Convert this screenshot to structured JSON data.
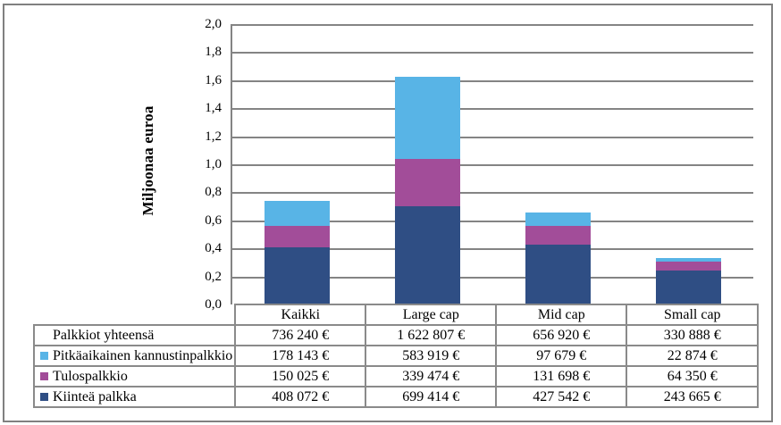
{
  "figure": {
    "background": "#ffffff",
    "outer_border_color": "#808080",
    "grid_color": "#848484",
    "table_border_color": "#8a8a8a"
  },
  "chart_data": {
    "type": "bar",
    "stacked": true,
    "title": "",
    "ylabel": "Miljoonaa euroa",
    "xlabel": "",
    "categories": [
      "Kaikki",
      "Large cap",
      "Mid cap",
      "Small cap"
    ],
    "series": [
      {
        "name": "Kiinteä palkka",
        "color": "#2F4E84",
        "values_millions": [
          0.408072,
          0.699414,
          0.427542,
          0.243665
        ]
      },
      {
        "name": "Tulospalkkio",
        "color": "#A24D99",
        "values_millions": [
          0.150025,
          0.339474,
          0.131698,
          0.06435
        ]
      },
      {
        "name": "Pitkäaikainen kannustinpalkkio",
        "color": "#58B4E6",
        "values_millions": [
          0.178143,
          0.583919,
          0.097679,
          0.022874
        ]
      }
    ],
    "totals_millions": [
      0.73624,
      1.622807,
      0.65692,
      0.330888
    ],
    "ylim": [
      0,
      2.0
    ],
    "ytick_labels": [
      "0,0",
      "0,2",
      "0,4",
      "0,6",
      "0,8",
      "1,0",
      "1,2",
      "1,4",
      "1,6",
      "1,8",
      "2,0"
    ],
    "grid": true,
    "legend_position": "table-below-chart"
  },
  "table": {
    "column_headers": [
      "Kaikki",
      "Large cap",
      "Mid cap",
      "Small cap"
    ],
    "rows": [
      {
        "label": "Palkkiot yhteensä",
        "swatch_color": null,
        "values": [
          "736 240 €",
          "1 622 807 €",
          "656 920 €",
          "330 888 €"
        ]
      },
      {
        "label": "Pitkäaikainen kannustinpalkkio",
        "swatch_color": "#58B4E6",
        "values": [
          "178 143 €",
          "583 919 €",
          "97 679 €",
          "22 874 €"
        ]
      },
      {
        "label": "Tulospalkkio",
        "swatch_color": "#A24D99",
        "values": [
          "150 025 €",
          "339 474 €",
          "131 698 €",
          "64 350 €"
        ]
      },
      {
        "label": "Kiinteä palkka",
        "swatch_color": "#2F4E84",
        "values": [
          "408 072 €",
          "699 414 €",
          "427 542 €",
          "243 665 €"
        ]
      }
    ]
  }
}
